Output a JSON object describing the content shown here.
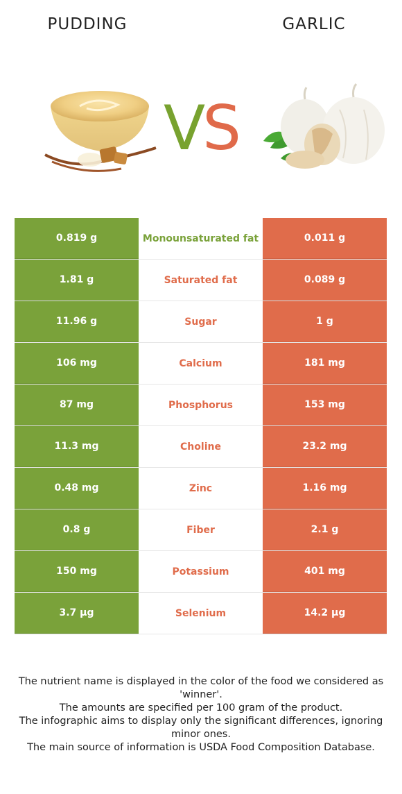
{
  "left_food": {
    "name": "PUDDING",
    "color": "#7aa23a"
  },
  "right_food": {
    "name": "GARLIC",
    "color": "#e06c4b"
  },
  "vs": {
    "v": "V",
    "s": "S"
  },
  "rows": [
    {
      "left": "0.819 g",
      "nutrient": "Monounsaturated fat",
      "right": "0.011 g",
      "winner": "left"
    },
    {
      "left": "1.81 g",
      "nutrient": "Saturated fat",
      "right": "0.089 g",
      "winner": "right"
    },
    {
      "left": "11.96 g",
      "nutrient": "Sugar",
      "right": "1 g",
      "winner": "right"
    },
    {
      "left": "106 mg",
      "nutrient": "Calcium",
      "right": "181 mg",
      "winner": "right"
    },
    {
      "left": "87 mg",
      "nutrient": "Phosphorus",
      "right": "153 mg",
      "winner": "right"
    },
    {
      "left": "11.3 mg",
      "nutrient": "Choline",
      "right": "23.2 mg",
      "winner": "right"
    },
    {
      "left": "0.48 mg",
      "nutrient": "Zinc",
      "right": "1.16 mg",
      "winner": "right"
    },
    {
      "left": "0.8 g",
      "nutrient": "Fiber",
      "right": "2.1 g",
      "winner": "right"
    },
    {
      "left": "150 mg",
      "nutrient": "Potassium",
      "right": "401 mg",
      "winner": "right"
    },
    {
      "left": "3.7 µg",
      "nutrient": "Selenium",
      "right": "14.2 µg",
      "winner": "right"
    }
  ],
  "footer": {
    "line1": "The nutrient name is displayed in the color of the food we considered as 'winner'.",
    "line2": "The amounts are specified per 100 gram of the product.",
    "line3": "The infographic aims to display only the significant differences, ignoring minor ones.",
    "line4": "The main source of information is USDA Food Composition Database."
  }
}
